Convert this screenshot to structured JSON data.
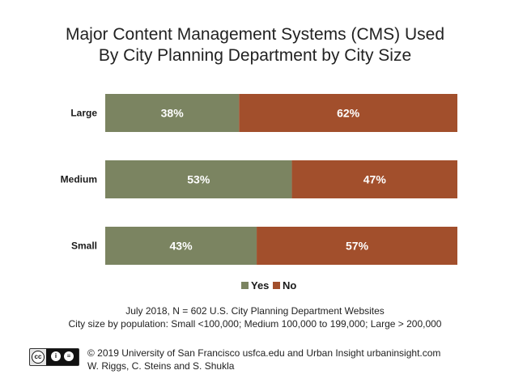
{
  "title_line1": "Major Content Management Systems (CMS) Used",
  "title_line2": "By City Planning Department by City Size",
  "chart_data": {
    "type": "bar",
    "orientation": "horizontal",
    "stacked": true,
    "percent": true,
    "categories": [
      "Large",
      "Medium",
      "Small"
    ],
    "series": [
      {
        "name": "Yes",
        "values": [
          38,
          53,
          43
        ],
        "labels": [
          "38%",
          "53%",
          "43%"
        ],
        "color": "#7b8461"
      },
      {
        "name": "No",
        "values": [
          62,
          47,
          57
        ],
        "labels": [
          "62%",
          "47%",
          "57%"
        ],
        "color": "#a24f2c"
      }
    ],
    "xlim": [
      0,
      100
    ],
    "grid": false,
    "legend_position": "bottom-center"
  },
  "notes": {
    "line1": "July 2018, N = 602 U.S. City Planning Department Websites",
    "line2": "City size by population:  Small <100,000; Medium 100,000 to 199,000; Large > 200,000"
  },
  "footer": {
    "line1": "© 2019 University of San Francisco usfca.edu and Urban Insight urbaninsight.com",
    "line2": "W. Riggs, C. Steins and S. Shukla",
    "license_badge": {
      "cc_text": "cc",
      "icon1": "i",
      "icon2": "≡"
    }
  }
}
